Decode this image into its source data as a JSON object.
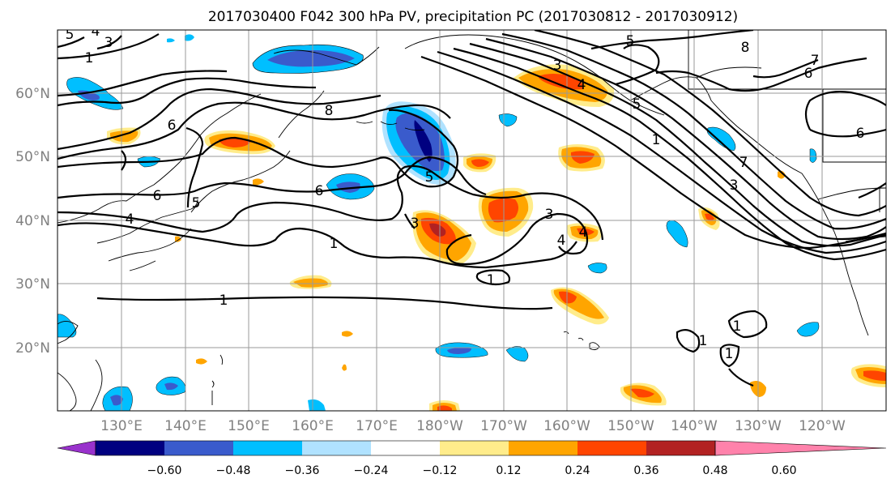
{
  "title": "2017030400 F042 300 hPa PV, precipitation PC (2017030812 - 2017030912)",
  "lat_labels": [
    "20°N",
    "30°N",
    "40°N",
    "50°N",
    "60°N"
  ],
  "lon_labels": [
    "130°E",
    "140°E",
    "150°E",
    "160°E",
    "170°E",
    "180°W",
    "170°W",
    "160°W",
    "150°W",
    "140°W",
    "130°W",
    "120°W"
  ],
  "contour_labels": [
    "5",
    "4",
    "3",
    "1",
    "6",
    "5",
    "4",
    "6",
    "8",
    "6",
    "7",
    "6",
    "5",
    "4",
    "3",
    "1",
    "7",
    "5",
    "3",
    "8",
    "6",
    "1",
    "5",
    "4",
    "3",
    "1",
    "3",
    "4",
    "1",
    "1",
    "1",
    "1"
  ],
  "colorbar": {
    "ticks": [
      "−0.60",
      "−0.48",
      "−0.36",
      "−0.24",
      "−0.12",
      "0.12",
      "0.24",
      "0.36",
      "0.48",
      "0.60"
    ],
    "colors": [
      "#9932cc",
      "#000080",
      "#3a5bcc",
      "#00bfff",
      "#b0e2ff",
      "#ffffff",
      "#ffec8b",
      "#ffa500",
      "#ff4500",
      "#b22222",
      "#ff82ab"
    ]
  }
}
